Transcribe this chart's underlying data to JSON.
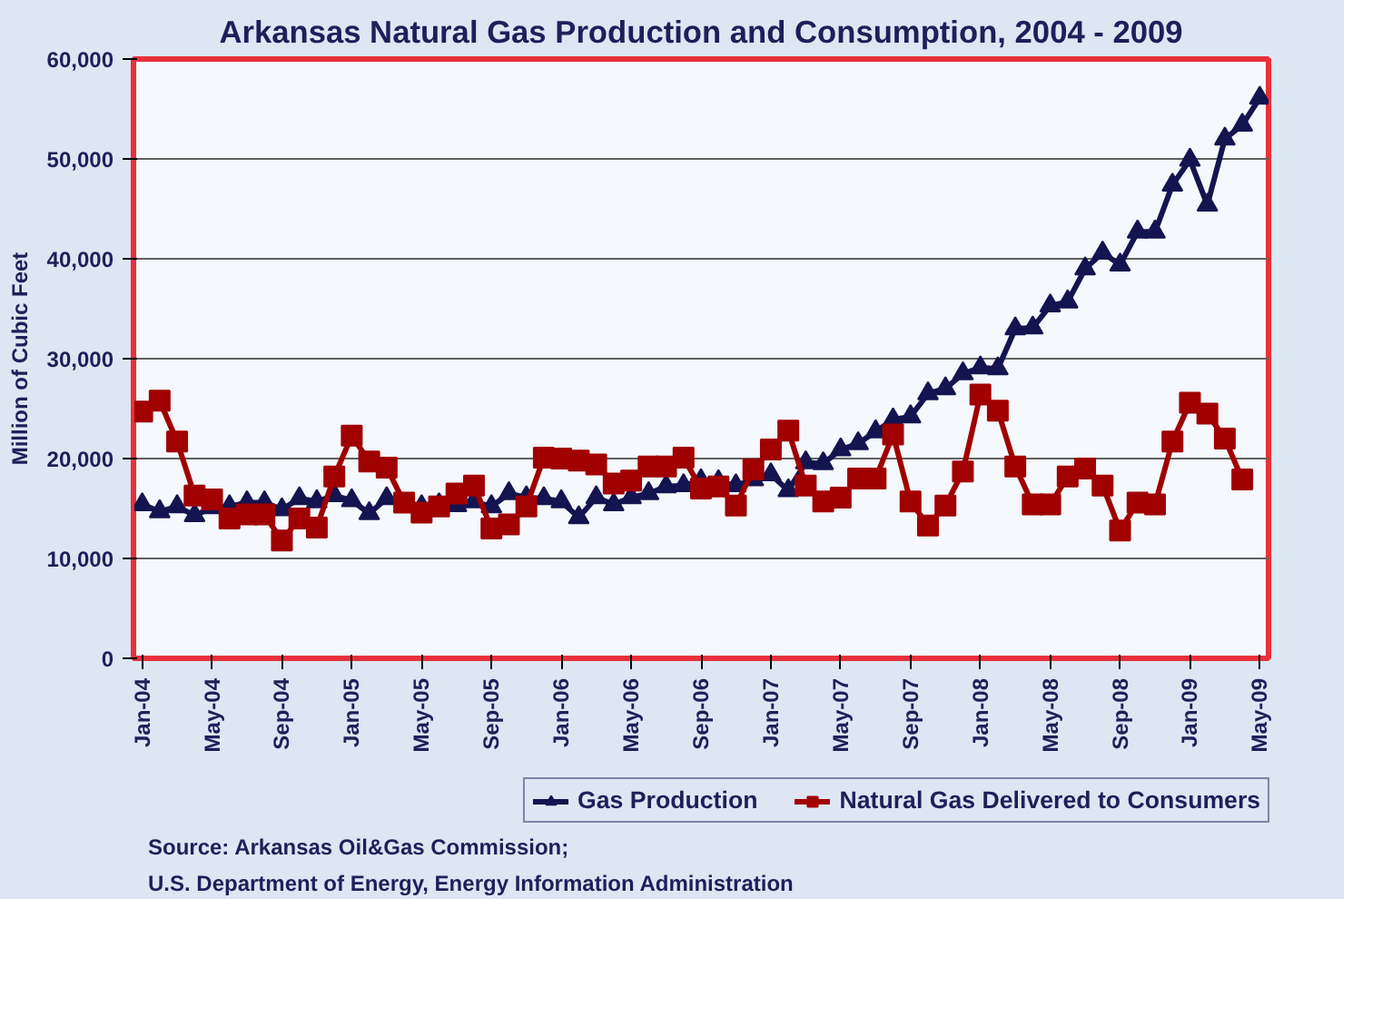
{
  "chart_data": {
    "type": "line",
    "title": "Arkansas Natural Gas Production and Consumption, 2004 - 2009",
    "ylabel": "Million of Cubic Feet",
    "categories": [
      "Jan-04",
      null,
      null,
      null,
      "May-04",
      null,
      null,
      null,
      "Sep-04",
      null,
      null,
      null,
      "Jan-05",
      null,
      null,
      null,
      "May-05",
      null,
      null,
      null,
      "Sep-05",
      null,
      null,
      null,
      "Jan-06",
      null,
      null,
      null,
      "May-06",
      null,
      null,
      null,
      "Sep-06",
      null,
      null,
      null,
      "Jan-07",
      null,
      null,
      null,
      "May-07",
      null,
      null,
      null,
      "Sep-07",
      null,
      null,
      null,
      "Jan-08",
      null,
      null,
      null,
      "May-08",
      null,
      null,
      null,
      "Sep-08",
      null,
      null,
      null,
      "Jan-09",
      null,
      null,
      null,
      "May-09"
    ],
    "series": [
      {
        "name": "Gas Production",
        "color": "#141450",
        "marker": "triangle",
        "values": [
          15400,
          14700,
          15200,
          14300,
          15100,
          15200,
          15600,
          15600,
          14900,
          16000,
          15700,
          16300,
          15800,
          14500,
          16000,
          15400,
          15200,
          15400,
          15300,
          15700,
          15200,
          16500,
          16100,
          16000,
          15700,
          14100,
          16100,
          15400,
          16100,
          16500,
          17200,
          17300,
          17800,
          17700,
          17300,
          17900,
          18400,
          16800,
          19600,
          19500,
          20900,
          21500,
          22700,
          23900,
          24200,
          26500,
          27000,
          28500,
          29100,
          29000,
          33000,
          33100,
          35300,
          35700,
          39000,
          40600,
          39400,
          42700,
          42700,
          47400,
          49900,
          45400,
          52000,
          53400,
          56100
        ]
      },
      {
        "name": "Natural Gas Delivered to Consumers",
        "color": "#a00000",
        "marker": "square",
        "values": [
          24700,
          25800,
          21700,
          16300,
          15900,
          14000,
          14400,
          14400,
          11800,
          14000,
          13100,
          18200,
          22300,
          19700,
          19100,
          15600,
          14600,
          15200,
          16500,
          17300,
          13000,
          13400,
          15200,
          20100,
          20000,
          19800,
          19400,
          17500,
          17800,
          19200,
          19200,
          20100,
          17000,
          17200,
          15300,
          18900,
          20900,
          22800,
          17300,
          15700,
          16100,
          18000,
          18000,
          22400,
          15700,
          13300,
          15300,
          18700,
          26400,
          24800,
          19200,
          15400,
          15400,
          18200,
          19000,
          17300,
          12800,
          15600,
          15400,
          21700,
          25600,
          24500,
          22000,
          17900,
          null
        ]
      }
    ],
    "ylim": [
      0,
      60000
    ],
    "yticks": [
      {
        "value": 0,
        "label": "0"
      },
      {
        "value": 10000,
        "label": "10,000"
      },
      {
        "value": 20000,
        "label": "20,000"
      },
      {
        "value": 30000,
        "label": "30,000"
      },
      {
        "value": 40000,
        "label": "40,000"
      },
      {
        "value": 50000,
        "label": "50,000"
      },
      {
        "value": 60000,
        "label": "60,000"
      }
    ],
    "grid": "y",
    "legend": "bottom",
    "line_style": "solid",
    "annotations": [
      "Source: Arkansas Oil&Gas Commission;",
      "U.S. Department of Energy, Energy Information Administration"
    ]
  }
}
